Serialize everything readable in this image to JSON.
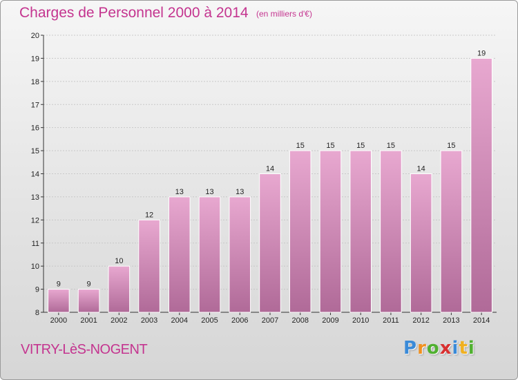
{
  "header": {
    "title": "Charges de Personnel 2000 à 2014",
    "subtitle": "(en milliers d'€)"
  },
  "footer": {
    "place": "VITRY-LèS-NOGENT",
    "logo_letters": [
      {
        "ch": "P",
        "color": "#3a8ad8"
      },
      {
        "ch": "r",
        "color": "#f09020"
      },
      {
        "ch": "o",
        "color": "#50b030"
      },
      {
        "ch": "x",
        "color": "#d83030"
      },
      {
        "ch": "i",
        "color": "#3a8ad8"
      },
      {
        "ch": "t",
        "color": "#f0b020"
      },
      {
        "ch": "i",
        "color": "#50b030"
      }
    ]
  },
  "colors": {
    "accent": "#c4348f",
    "bar_top": "#e8a8d0",
    "bar_bottom": "#b06a98",
    "bar_stroke": "#ffffff",
    "grid": "#c8c8c8"
  },
  "chart_data": {
    "type": "bar",
    "categories": [
      "2000",
      "2001",
      "2002",
      "2003",
      "2004",
      "2005",
      "2006",
      "2007",
      "2008",
      "2009",
      "2010",
      "2011",
      "2012",
      "2013",
      "2014"
    ],
    "values": [
      9,
      9,
      10,
      12,
      13,
      13,
      13,
      14,
      15,
      15,
      15,
      15,
      14,
      15,
      19
    ],
    "data_labels": [
      "9",
      "9",
      "10",
      "12",
      "13",
      "13",
      "13",
      "14",
      "15",
      "15",
      "15",
      "15",
      "14",
      "15",
      "19"
    ],
    "yticks": [
      8,
      9,
      10,
      11,
      12,
      13,
      14,
      15,
      16,
      17,
      18,
      19,
      20
    ],
    "ylim": [
      8,
      20
    ],
    "title": "Charges de Personnel 2000 à 2014",
    "xlabel": "",
    "ylabel": "",
    "grid": true,
    "legend": "none"
  }
}
